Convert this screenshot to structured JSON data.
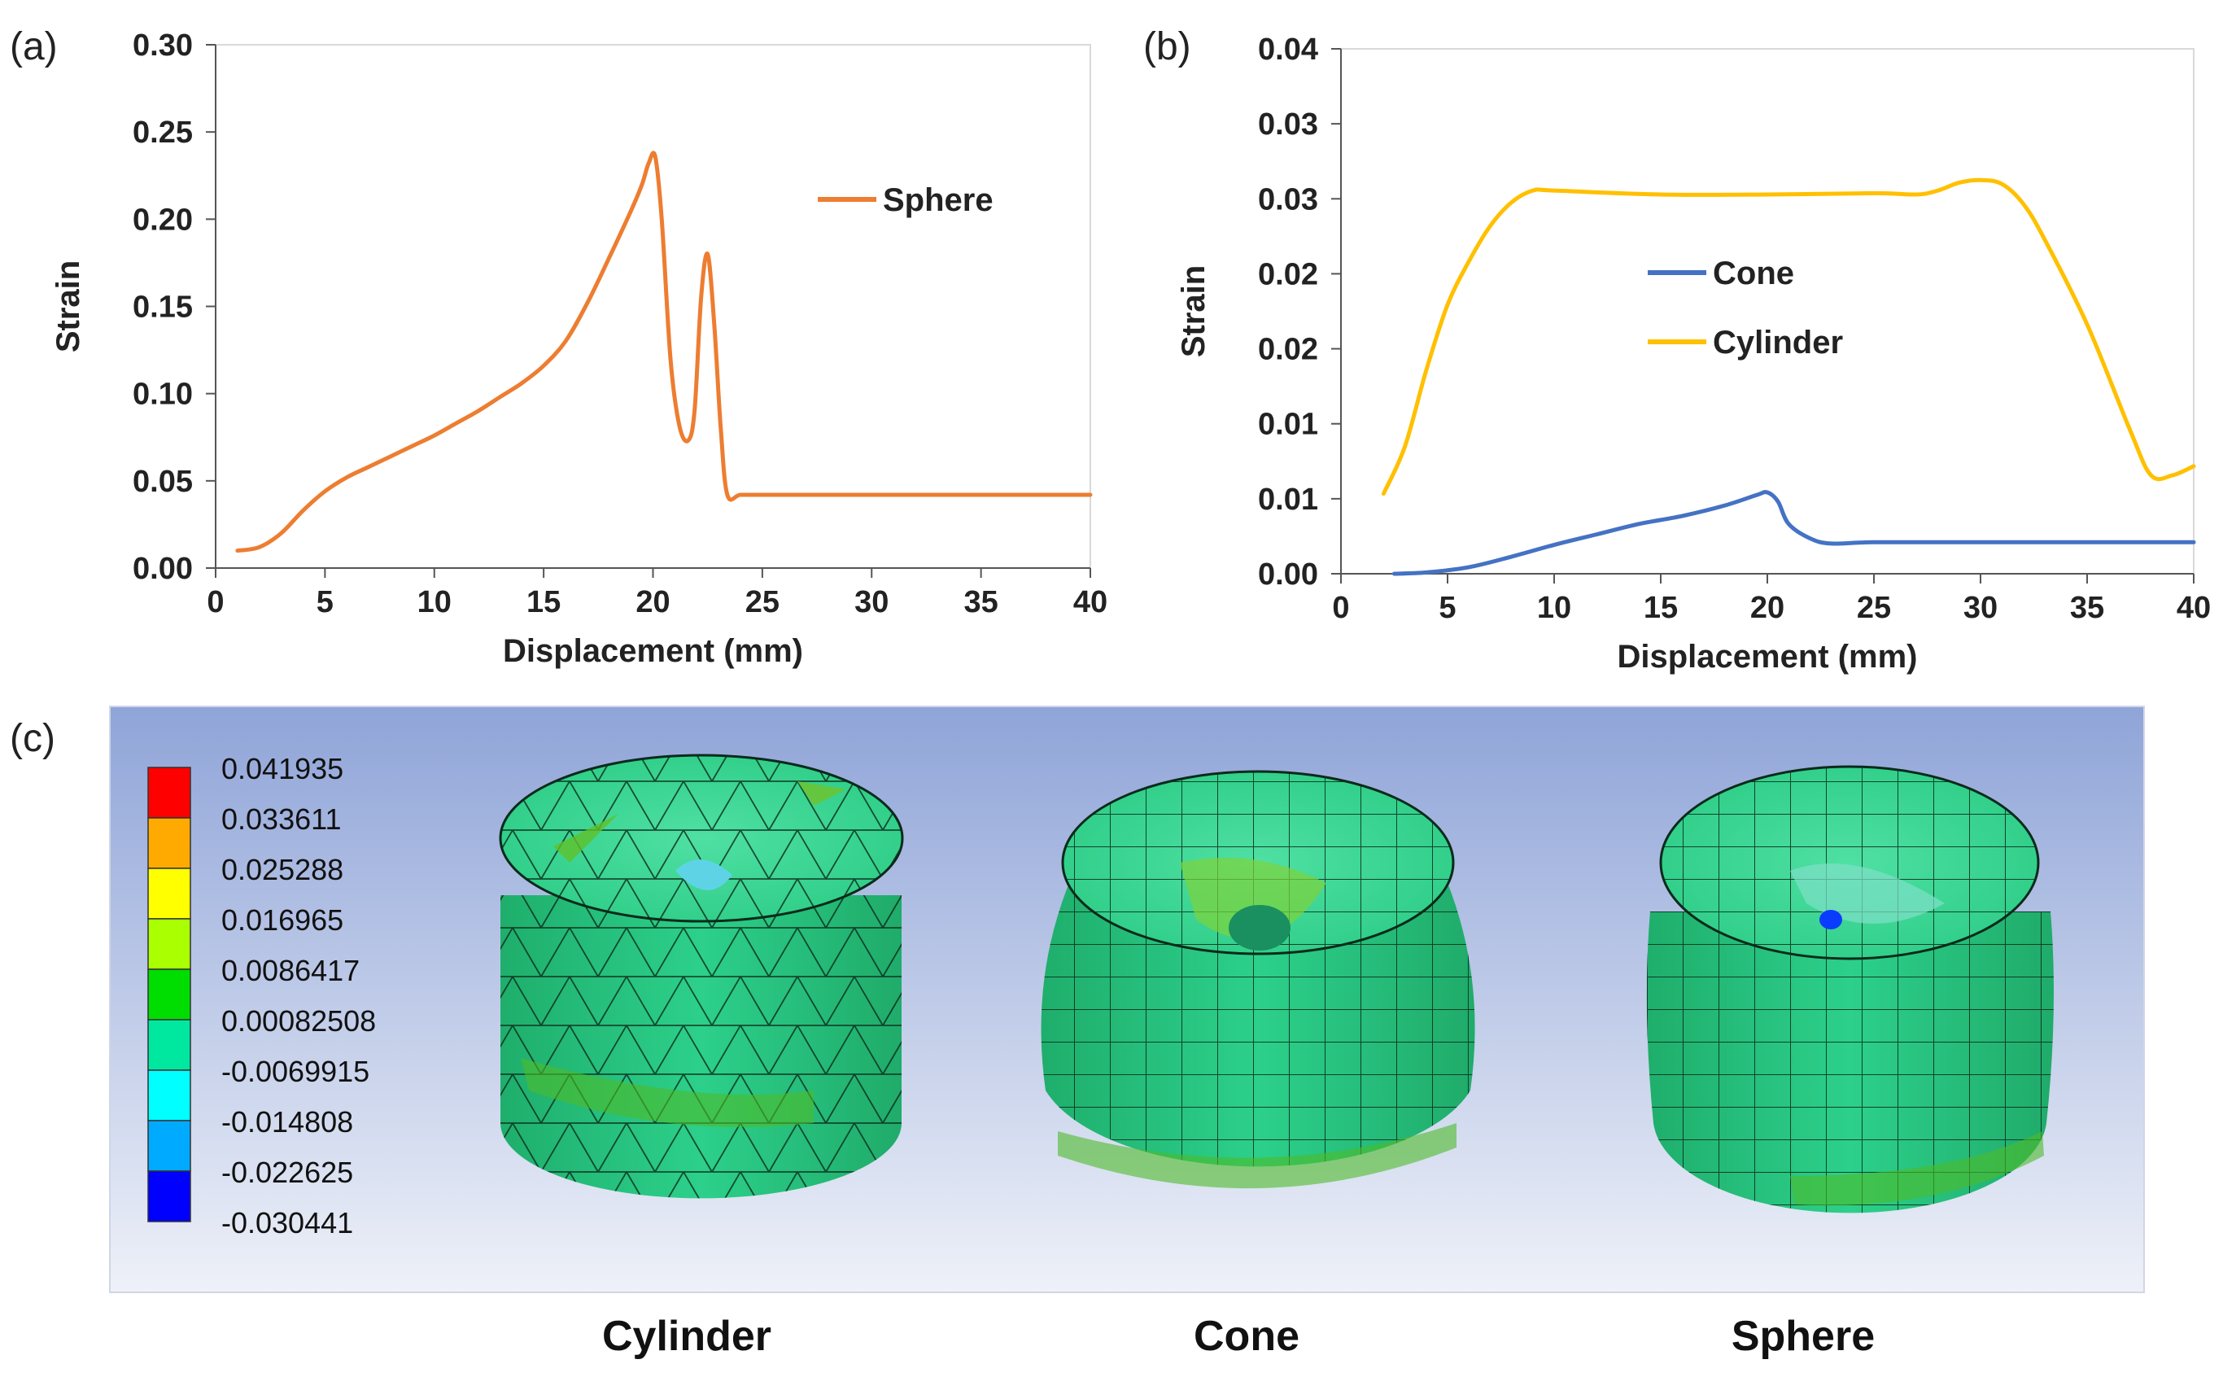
{
  "panels": {
    "a": "(a)",
    "b": "(b)",
    "c": "(c)"
  },
  "chart_data": [
    {
      "type": "line",
      "id": "a",
      "title": "",
      "xlabel": "Displacement (mm)",
      "ylabel": "Strain",
      "xlim": [
        0,
        40
      ],
      "ylim": [
        0,
        0.3
      ],
      "xticks": [
        "0",
        "5",
        "10",
        "15",
        "20",
        "25",
        "30",
        "35",
        "40"
      ],
      "yticks": [
        "0.00",
        "0.05",
        "0.10",
        "0.15",
        "0.20",
        "0.25",
        "0.30"
      ],
      "legend_position": "top-right",
      "series": [
        {
          "name": "Sphere",
          "color": "#ED7D31",
          "x": [
            1,
            2,
            3,
            4,
            5,
            6,
            7,
            8,
            9,
            10,
            11,
            12,
            13,
            14,
            15,
            16,
            17,
            18,
            19,
            19.5,
            19.8,
            20.1,
            20.4,
            20.8,
            21.2,
            21.6,
            21.9,
            22.2,
            22.5,
            22.8,
            23.1,
            23.4,
            24,
            25,
            30,
            35,
            40
          ],
          "y": [
            0.01,
            0.012,
            0.02,
            0.033,
            0.044,
            0.052,
            0.058,
            0.064,
            0.07,
            0.076,
            0.083,
            0.09,
            0.098,
            0.106,
            0.116,
            0.13,
            0.152,
            0.178,
            0.205,
            0.22,
            0.232,
            0.236,
            0.2,
            0.12,
            0.082,
            0.073,
            0.09,
            0.155,
            0.18,
            0.14,
            0.08,
            0.042,
            0.042,
            0.042,
            0.042,
            0.042,
            0.042
          ]
        }
      ]
    },
    {
      "type": "line",
      "id": "b",
      "title": "",
      "xlabel": "Displacement (mm)",
      "ylabel": "Strain",
      "xlim": [
        0,
        40
      ],
      "ylim": [
        0,
        0.04
      ],
      "xticks": [
        "0",
        "5",
        "10",
        "15",
        "20",
        "25",
        "30",
        "35",
        "40"
      ],
      "yticks": [
        "0.00",
        "0.01",
        "0.01",
        "0.02",
        "0.02",
        "0.03",
        "0.03",
        "0.04"
      ],
      "legend_position": "center",
      "series": [
        {
          "name": "Cone",
          "color": "#4472C4",
          "x": [
            2.5,
            4,
            6,
            8,
            10,
            12,
            14,
            16,
            18,
            19.5,
            20,
            20.5,
            21,
            22,
            23,
            25,
            30,
            35,
            40
          ],
          "y": [
            0.0,
            0.0001,
            0.0005,
            0.0013,
            0.0022,
            0.003,
            0.0038,
            0.0044,
            0.0052,
            0.006,
            0.0062,
            0.0055,
            0.0038,
            0.0027,
            0.0023,
            0.0024,
            0.0024,
            0.0024,
            0.0024
          ]
        },
        {
          "name": "Cylinder",
          "color": "#FFC000",
          "x": [
            2,
            3,
            4,
            5,
            6,
            7,
            8,
            9,
            10,
            15,
            20,
            25,
            27,
            28,
            29,
            30,
            31,
            32,
            33,
            35,
            37,
            38,
            39,
            40
          ],
          "y": [
            0.0061,
            0.0097,
            0.0155,
            0.0205,
            0.0238,
            0.0265,
            0.0283,
            0.0292,
            0.0292,
            0.0289,
            0.0289,
            0.029,
            0.0289,
            0.0292,
            0.0298,
            0.03,
            0.0297,
            0.0282,
            0.0255,
            0.019,
            0.011,
            0.0075,
            0.0075,
            0.0082
          ]
        }
      ]
    }
  ],
  "contour_legend": {
    "values": [
      "0.041935",
      "0.033611",
      "0.025288",
      "0.016965",
      "0.0086417",
      "0.00082508",
      "-0.0069915",
      "-0.014808",
      "-0.022625",
      "-0.030441"
    ],
    "colors": [
      "#ff0000",
      "#ffaa00",
      "#ffff00",
      "#aaff00",
      "#00dd00",
      "#00e8a0",
      "#00ffff",
      "#00aaff",
      "#0000ff"
    ]
  },
  "mesh_labels": {
    "cylinder": "Cylinder",
    "cone": "Cone",
    "sphere": "Sphere"
  }
}
